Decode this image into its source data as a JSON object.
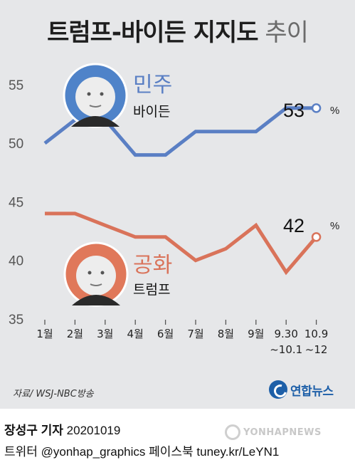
{
  "title": {
    "main": "트럼프-바이든 지지도",
    "suffix": "추이"
  },
  "chart_data": {
    "type": "line",
    "categories": [
      [
        "1월"
      ],
      [
        "2월"
      ],
      [
        "3월"
      ],
      [
        "4월"
      ],
      [
        "6월"
      ],
      [
        "7월"
      ],
      [
        "8월"
      ],
      [
        "9월"
      ],
      [
        "9.30",
        "~10.1"
      ],
      [
        "10.9",
        "~12"
      ]
    ],
    "yticks": [
      35,
      40,
      45,
      50,
      55
    ],
    "ylim": [
      35,
      57
    ],
    "grid": false,
    "series": [
      {
        "name": "민주",
        "candidate": "바이든",
        "color": "#5a7fc4",
        "values": [
          50,
          52,
          52,
          49,
          49,
          51,
          51,
          51,
          53,
          53
        ],
        "end_label": "53",
        "unit": "%"
      },
      {
        "name": "공화",
        "candidate": "트럼프",
        "color": "#d9735a",
        "values": [
          44,
          44,
          43,
          42,
          42,
          40,
          41,
          43,
          39,
          42
        ],
        "end_label": "42",
        "unit": "%"
      }
    ]
  },
  "source": "자료/ WSJ-NBC방송",
  "logo": "연합뉴스",
  "credit": {
    "reporter": "장성구 기자",
    "date": "20201019"
  },
  "social": "트위터 @yonhap_graphics  페이스북 tuney.kr/LeYN1",
  "watermark": "YONHAPNEWS"
}
